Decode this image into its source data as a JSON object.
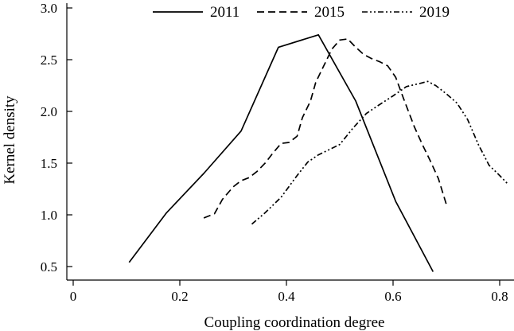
{
  "chart_data": {
    "type": "line",
    "title": "",
    "xlabel": "Coupling coordination degree",
    "ylabel": "Kernel density",
    "xlim": [
      0,
      0.8
    ],
    "ylim": [
      0.5,
      3.0
    ],
    "xticks": [
      0,
      0.2,
      0.4,
      0.6,
      0.8
    ],
    "xtick_labels": [
      "0",
      "0.2",
      "0.4",
      "0.6",
      "0.8"
    ],
    "yticks": [
      0.5,
      1.0,
      1.5,
      2.0,
      2.5,
      3.0
    ],
    "ytick_labels": [
      "0.5",
      "1.0",
      "1.5",
      "2.0",
      "2.5",
      "3.0"
    ],
    "legend_position": "top",
    "grid": false,
    "series": [
      {
        "name": "2011",
        "style": "solid",
        "x": [
          0.105,
          0.175,
          0.245,
          0.315,
          0.385,
          0.46,
          0.53,
          0.605,
          0.675
        ],
        "y": [
          0.54,
          1.02,
          1.4,
          1.81,
          2.62,
          2.74,
          2.1,
          1.13,
          0.45
        ]
      },
      {
        "name": "2015",
        "style": "dashed",
        "x": [
          0.245,
          0.265,
          0.28,
          0.3,
          0.315,
          0.33,
          0.345,
          0.36,
          0.375,
          0.39,
          0.405,
          0.42,
          0.43,
          0.445,
          0.455,
          0.47,
          0.485,
          0.5,
          0.515,
          0.53,
          0.545,
          0.56,
          0.575,
          0.59,
          0.605,
          0.62,
          0.64,
          0.655,
          0.67,
          0.685,
          0.7
        ],
        "y": [
          0.97,
          1.01,
          1.15,
          1.27,
          1.33,
          1.36,
          1.42,
          1.5,
          1.6,
          1.69,
          1.7,
          1.76,
          1.94,
          2.1,
          2.28,
          2.44,
          2.6,
          2.69,
          2.7,
          2.62,
          2.55,
          2.51,
          2.48,
          2.44,
          2.33,
          2.12,
          1.85,
          1.68,
          1.52,
          1.35,
          1.1
        ]
      },
      {
        "name": "2019",
        "style": "dash-dot-dot",
        "x": [
          0.335,
          0.36,
          0.39,
          0.42,
          0.44,
          0.46,
          0.48,
          0.5,
          0.525,
          0.55,
          0.57,
          0.6,
          0.625,
          0.65,
          0.665,
          0.68,
          0.7,
          0.72,
          0.74,
          0.76,
          0.78,
          0.8,
          0.815
        ],
        "y": [
          0.91,
          1.02,
          1.17,
          1.38,
          1.51,
          1.58,
          1.63,
          1.68,
          1.84,
          1.98,
          2.05,
          2.15,
          2.24,
          2.27,
          2.29,
          2.25,
          2.17,
          2.08,
          1.92,
          1.68,
          1.48,
          1.38,
          1.3
        ]
      }
    ]
  }
}
